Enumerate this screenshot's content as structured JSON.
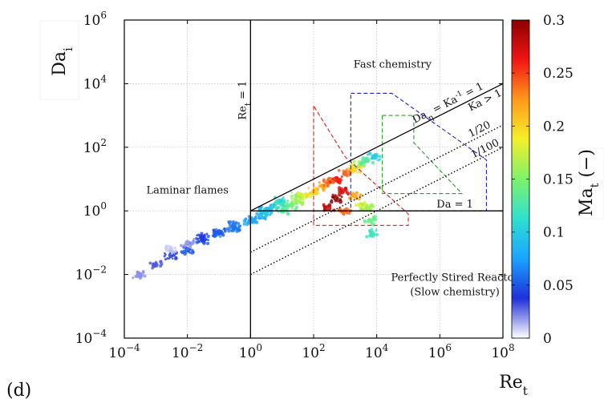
{
  "chart_data": {
    "type": "scatter",
    "panel_label": "(d)",
    "xlabel": "Re_t",
    "ylabel": "Da_i",
    "xscale": "log",
    "yscale": "log",
    "xlim": [
      0.0001,
      100000000
    ],
    "ylim": [
      0.0001,
      1000000
    ],
    "xticks": [
      {
        "base": "10",
        "exp": "−4"
      },
      {
        "base": "10",
        "exp": "−2"
      },
      {
        "base": "10",
        "exp": "0"
      },
      {
        "base": "10",
        "exp": "2"
      },
      {
        "base": "10",
        "exp": "4"
      },
      {
        "base": "10",
        "exp": "6"
      },
      {
        "base": "10",
        "exp": "8"
      }
    ],
    "yticks": [
      {
        "base": "10",
        "exp": "−4"
      },
      {
        "base": "10",
        "exp": "−2"
      },
      {
        "base": "10",
        "exp": "0"
      },
      {
        "base": "10",
        "exp": "2"
      },
      {
        "base": "10",
        "exp": "4"
      },
      {
        "base": "10",
        "exp": "6"
      }
    ],
    "grid": true,
    "colorbar": {
      "label": "Ma_t (−)",
      "range": [
        0,
        0.3
      ],
      "ticks": [
        "0",
        "0.05",
        "0.1",
        "0.15",
        "0.2",
        "0.25",
        "0.3"
      ],
      "colormap": [
        "#ffffff",
        "#1f2fd8",
        "#1aa3ff",
        "#2fe0d0",
        "#7ef26a",
        "#f4ef2a",
        "#ff9a1a",
        "#f01414",
        "#8b0000"
      ]
    },
    "regions": [
      {
        "label": "Fast chemistry",
        "x": 31622,
        "y": 31622
      },
      {
        "label": "Laminar flames",
        "x": 0.01,
        "y": 3.5
      },
      {
        "label": "Perfectly Stired Reactor",
        "x": 3000000,
        "y": 0.0063
      },
      {
        "label": "(Slow chemistry)",
        "x": 3000000,
        "y": 0.0022
      }
    ],
    "boundaries": [
      {
        "label": "Re_t = 1",
        "x": [
          1,
          1
        ],
        "y": [
          0.0001,
          1000000
        ],
        "style": "solid"
      },
      {
        "label": "Da = 1",
        "x": [
          1,
          100000000
        ],
        "y": [
          1,
          1
        ],
        "style": "solid"
      },
      {
        "label": "Da_η = Ka^-1 = 1",
        "x": [
          1,
          100000000
        ],
        "y": [
          1,
          10000
        ],
        "style": "solid"
      },
      {
        "label": "Ka > 1",
        "x": [
          1,
          100000000
        ],
        "y": [
          1,
          10000
        ],
        "style": "none"
      },
      {
        "label": "1/20",
        "x": [
          1,
          100000000
        ],
        "y": [
          0.05,
          500
        ],
        "style": "dotted"
      },
      {
        "label": "1/100",
        "x": [
          1,
          100000000
        ],
        "y": [
          0.01,
          100
        ],
        "style": "dotted"
      }
    ],
    "dashed_regions": [
      {
        "color": "#d42020",
        "x": [
          100,
          100,
          100000,
          100000,
          1000
        ],
        "y": [
          2000,
          0.35,
          0.35,
          0.8,
          50
        ]
      },
      {
        "color": "#2020d0",
        "x": [
          1500,
          30000,
          30000000,
          30000000,
          1500
        ],
        "y": [
          5000,
          5000,
          40,
          1,
          1
        ]
      },
      {
        "color": "#20a020",
        "x": [
          15000,
          150000,
          150000,
          5000000,
          15000
        ],
        "y": [
          1000,
          1000,
          140,
          3.5,
          3.5
        ]
      }
    ],
    "series": [
      {
        "x": [
          0.0003,
          0.001,
          0.003,
          0.01,
          0.03,
          0.1,
          0.3,
          1,
          2,
          3,
          5,
          8
        ],
        "y": [
          0.01,
          0.02,
          0.04,
          0.06,
          0.12,
          0.2,
          0.3,
          0.5,
          0.7,
          1.0,
          1.4,
          2.0
        ],
        "ma": [
          0.02,
          0.03,
          0.04,
          0.05,
          0.05,
          0.06,
          0.06,
          0.07,
          0.08,
          0.08,
          0.09,
          0.1
        ]
      },
      {
        "x": [
          0.003,
          0.01,
          0.03,
          0.1,
          0.3,
          1,
          3,
          10,
          30
        ],
        "y": [
          0.06,
          0.1,
          0.15,
          0.22,
          0.35,
          0.5,
          0.9,
          1.6,
          3
        ],
        "ma": [
          0.01,
          0.02,
          0.04,
          0.05,
          0.06,
          0.08,
          0.1,
          0.12,
          0.15
        ]
      },
      {
        "x": [
          10,
          20,
          30,
          50,
          100,
          200,
          300,
          500,
          1000,
          2000,
          3000,
          5000,
          8000
        ],
        "y": [
          1.0,
          1.5,
          2.0,
          3.0,
          4.0,
          6.0,
          8.0,
          10,
          15,
          20,
          30,
          40,
          50
        ],
        "ma": [
          0.13,
          0.14,
          0.16,
          0.18,
          0.2,
          0.22,
          0.24,
          0.26,
          0.24,
          0.2,
          0.16,
          0.13,
          0.1
        ]
      },
      {
        "x": [
          300,
          500,
          800,
          1000,
          2000,
          3000,
          5000,
          6000,
          7000
        ],
        "y": [
          1.2,
          2.5,
          4,
          1,
          3,
          1.5,
          1.2,
          0.5,
          0.2
        ],
        "ma": [
          0.28,
          0.3,
          0.27,
          0.24,
          0.22,
          0.18,
          0.16,
          0.14,
          0.12
        ]
      }
    ]
  }
}
